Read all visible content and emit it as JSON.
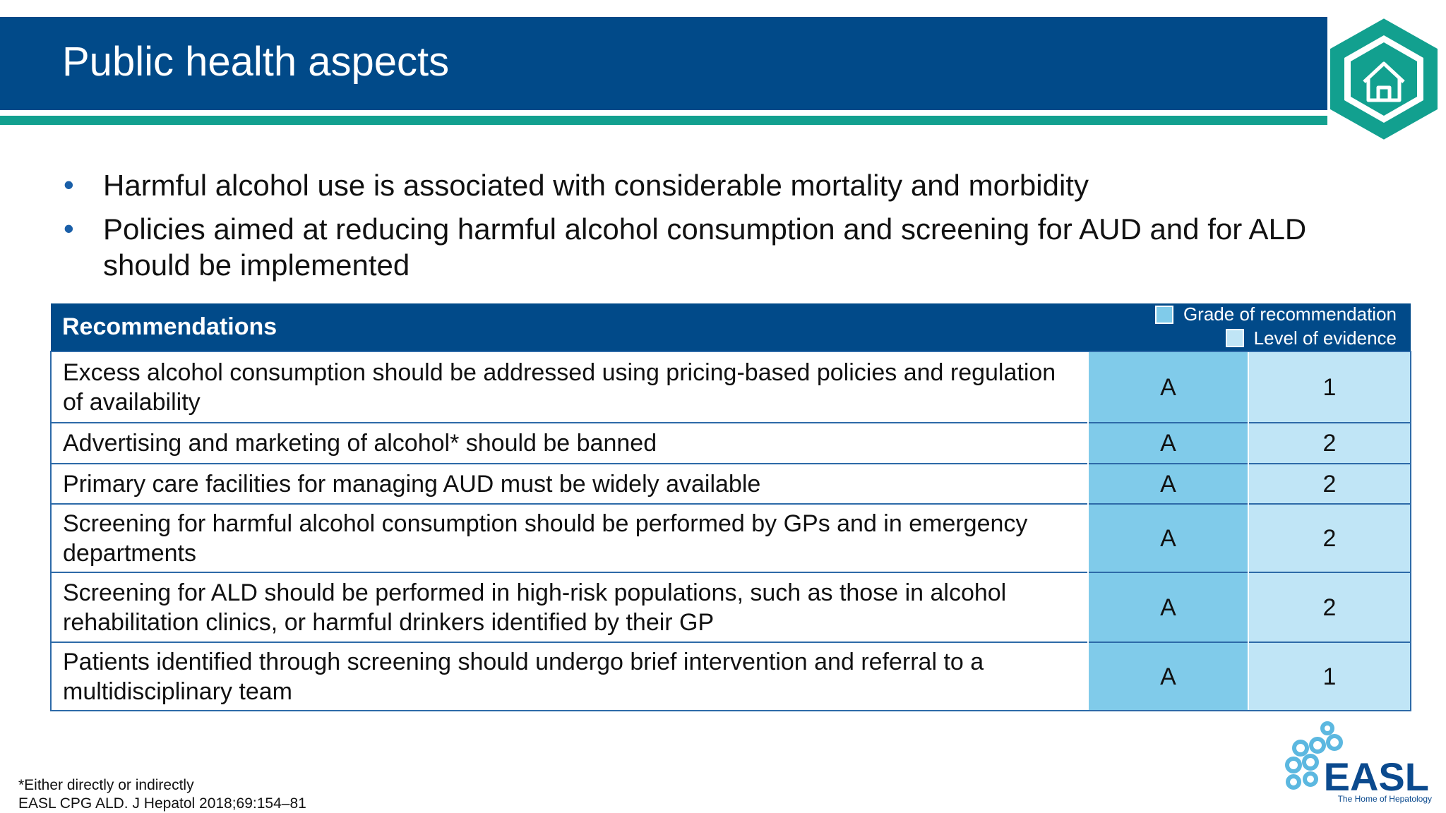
{
  "header": {
    "title": "Public health aspects"
  },
  "bullets": [
    "Harmful alcohol use is associated with considerable mortality and morbidity",
    "Policies aimed at reducing harmful alcohol consumption and screening for AUD and for ALD should be implemented"
  ],
  "table": {
    "header": "Recommendations",
    "legend": [
      "Grade of recommendation",
      "Level of evidence"
    ],
    "rows": [
      [
        "Excess alcohol consumption should be addressed using pricing-based policies and regulation of availability",
        "A",
        "1"
      ],
      [
        "Advertising and marketing of alcohol* should be banned",
        "A",
        "2"
      ],
      [
        "Primary care facilities for managing AUD must be widely available",
        "A",
        "2"
      ],
      [
        "Screening for harmful alcohol consumption should be performed by GPs and in emergency departments",
        "A",
        "2"
      ],
      [
        "Screening for ALD should be performed in high-risk populations, such as those in alcohol rehabilitation clinics, or harmful drinkers identified by their GP",
        "A",
        "2"
      ],
      [
        "Patients identified through screening should undergo brief intervention and referral to a multidisciplinary team",
        "A",
        "1"
      ]
    ]
  },
  "footnotes": [
    "*Either directly or indirectly",
    "EASL CPG ALD. J Hepatol 2018;69:154–81"
  ],
  "logo": {
    "name": "EASL",
    "tagline": "The Home of Hepatology"
  }
}
